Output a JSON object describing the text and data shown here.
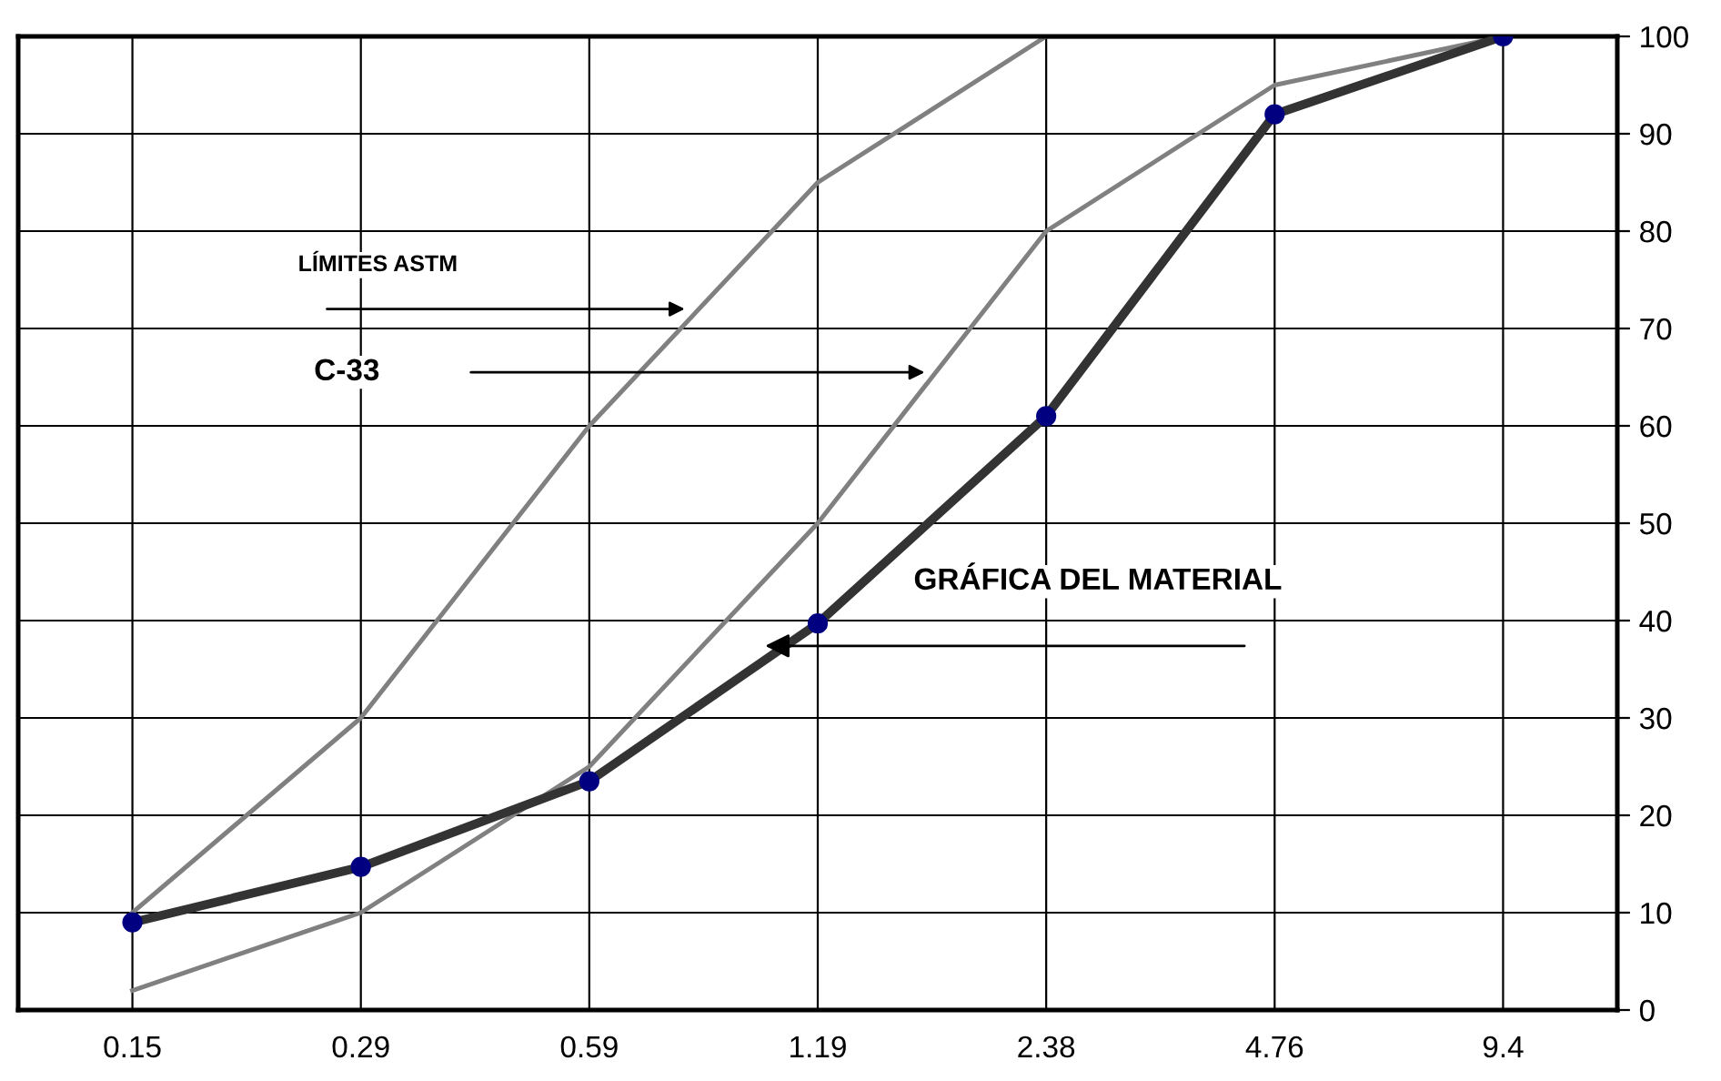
{
  "chart_data": {
    "type": "line",
    "categories": [
      "0.15",
      "0.29",
      "0.59",
      "1.19",
      "2.38",
      "4.76",
      "9.4"
    ],
    "series": [
      {
        "color": "#808080",
        "marker": "none",
        "values": [
          10,
          30,
          60,
          85,
          100,
          100,
          100
        ]
      },
      {
        "color": "#808080",
        "marker": "none",
        "values": [
          2,
          10,
          25,
          50,
          80,
          95,
          100
        ]
      },
      {
        "color": "#333333",
        "marker": "circle",
        "values": [
          9,
          14.7,
          23.5,
          39.7,
          61,
          92,
          100
        ]
      }
    ],
    "ylim": [
      0,
      100
    ],
    "yticks": [
      0,
      10,
      20,
      30,
      40,
      50,
      60,
      70,
      80,
      90,
      100
    ],
    "grid": true,
    "legend": false,
    "annotations": [
      "LÍMITES ASTM",
      "C-33",
      "GRÁFICA DEL MATERIAL"
    ]
  }
}
